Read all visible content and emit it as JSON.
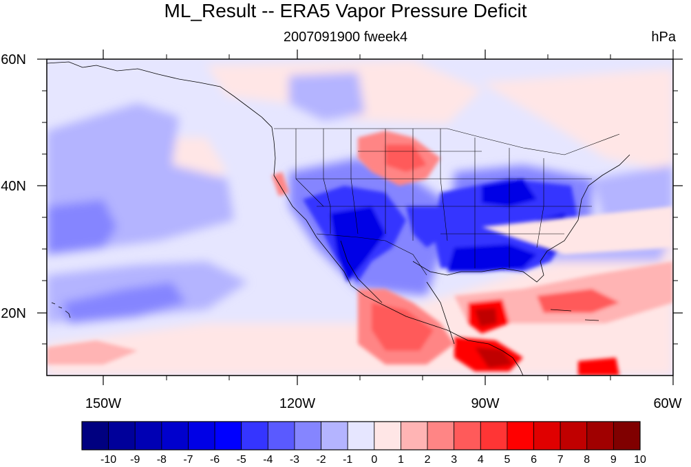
{
  "title": "ML_Result -- ERA5 Vapor Pressure Deficit",
  "subtitle": "2007091900 fweek4",
  "units": "hPa",
  "lat_labels": [
    "60N",
    "40N",
    "20N"
  ],
  "lon_labels": [
    "150W",
    "120W",
    "90W",
    "60W"
  ],
  "colorbar": {
    "labels": [
      "-10",
      "-9",
      "-8",
      "-7",
      "-6",
      "-5",
      "-4",
      "-3",
      "-2",
      "-1",
      "0",
      "1",
      "2",
      "3",
      "4",
      "5",
      "6",
      "7",
      "8",
      "9",
      "10"
    ],
    "colors": [
      "#000080",
      "#00009a",
      "#0000b4",
      "#0000cd",
      "#0000e6",
      "#0000ff",
      "#3535ff",
      "#5a5aff",
      "#8585ff",
      "#b4b4ff",
      "#e6e6ff",
      "#ffe6e6",
      "#ffb4b4",
      "#ff8585",
      "#ff5a5a",
      "#ff3535",
      "#ff0000",
      "#e00000",
      "#c00000",
      "#a00000",
      "#800000"
    ]
  },
  "map": {
    "projection": "cylindrical-equidistant",
    "lon_range": [
      -160,
      -60
    ],
    "lat_range": [
      10,
      60
    ]
  }
}
